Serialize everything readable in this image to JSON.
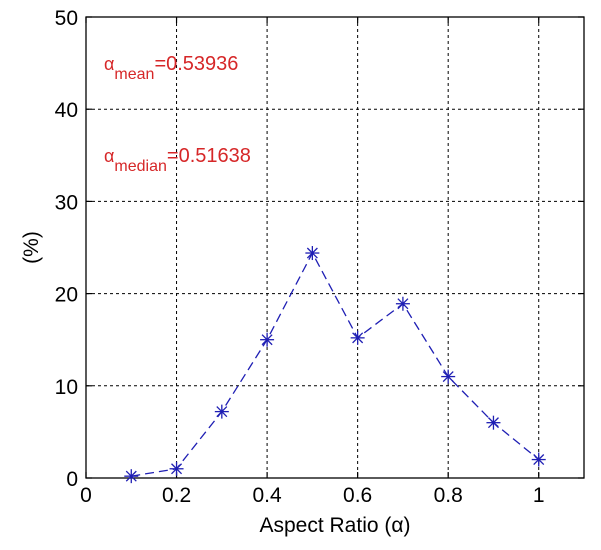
{
  "chart_data": {
    "type": "line",
    "xlabel": "Aspect Ratio (α)",
    "ylabel": "(%)",
    "xlim": [
      0,
      1.1
    ],
    "ylim": [
      0,
      50
    ],
    "xticks": [
      0,
      0.2,
      0.4,
      0.6,
      0.8,
      1
    ],
    "xtick_labels": [
      "0",
      "0.2",
      "0.4",
      "0.6",
      "0.8",
      "1"
    ],
    "yticks": [
      0,
      10,
      20,
      30,
      40,
      50
    ],
    "ytick_labels": [
      "0",
      "10",
      "20",
      "30",
      "40",
      "50"
    ],
    "grid": true,
    "line_style": "dashed",
    "marker": "asterisk",
    "series_color": "#1f1fb4",
    "annotation_color": "#d62728",
    "series": [
      {
        "x": [
          0.1,
          0.2,
          0.3,
          0.4,
          0.5,
          0.6,
          0.7,
          0.8,
          0.9,
          1.0
        ],
        "values": [
          0.2,
          1.0,
          7.2,
          15.0,
          24.4,
          15.2,
          18.9,
          11.0,
          6.0,
          2.0
        ]
      }
    ],
    "annotations": [
      {
        "symbol": "α",
        "subscript": "mean",
        "text": "=0.53936"
      },
      {
        "symbol": "α",
        "subscript": "median",
        "text": "=0.51638"
      }
    ]
  }
}
